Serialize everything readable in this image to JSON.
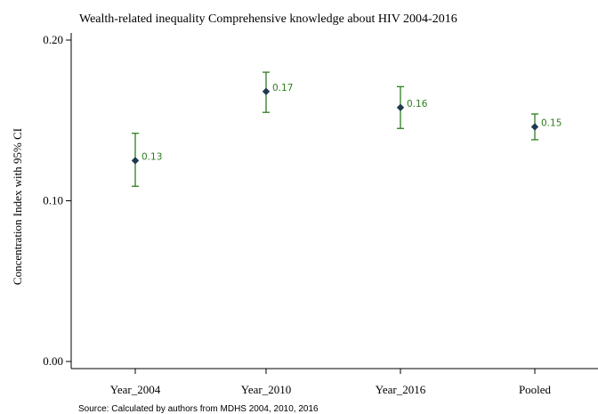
{
  "chart_data": {
    "type": "scatter",
    "title": "Wealth-related inequality Comprehensive knowledge about HIV 2004-2016",
    "ylabel": "Concentration Index with 95% CI",
    "xlabel": "",
    "categories": [
      "Year_2004",
      "Year_2010",
      "Year_2016",
      "Pooled"
    ],
    "values": [
      0.125,
      0.168,
      0.158,
      0.146
    ],
    "ci_lower": [
      0.109,
      0.155,
      0.145,
      0.138
    ],
    "ci_upper": [
      0.142,
      0.18,
      0.171,
      0.154
    ],
    "data_labels": [
      "0.13",
      "0.17",
      "0.16",
      "0.15"
    ],
    "ylim": [
      0,
      0.2
    ],
    "yticks": [
      0,
      0.1,
      0.2
    ],
    "ytick_labels": [
      "0.00",
      "0.10",
      "0.20"
    ],
    "grid": false,
    "source": "Source: Calculated  by authors from MDHS 2004, 2010, 2016",
    "colors": {
      "marker": "#1f3a4f",
      "ci": "#2e7d1f",
      "label": "#2e7d1f"
    }
  }
}
